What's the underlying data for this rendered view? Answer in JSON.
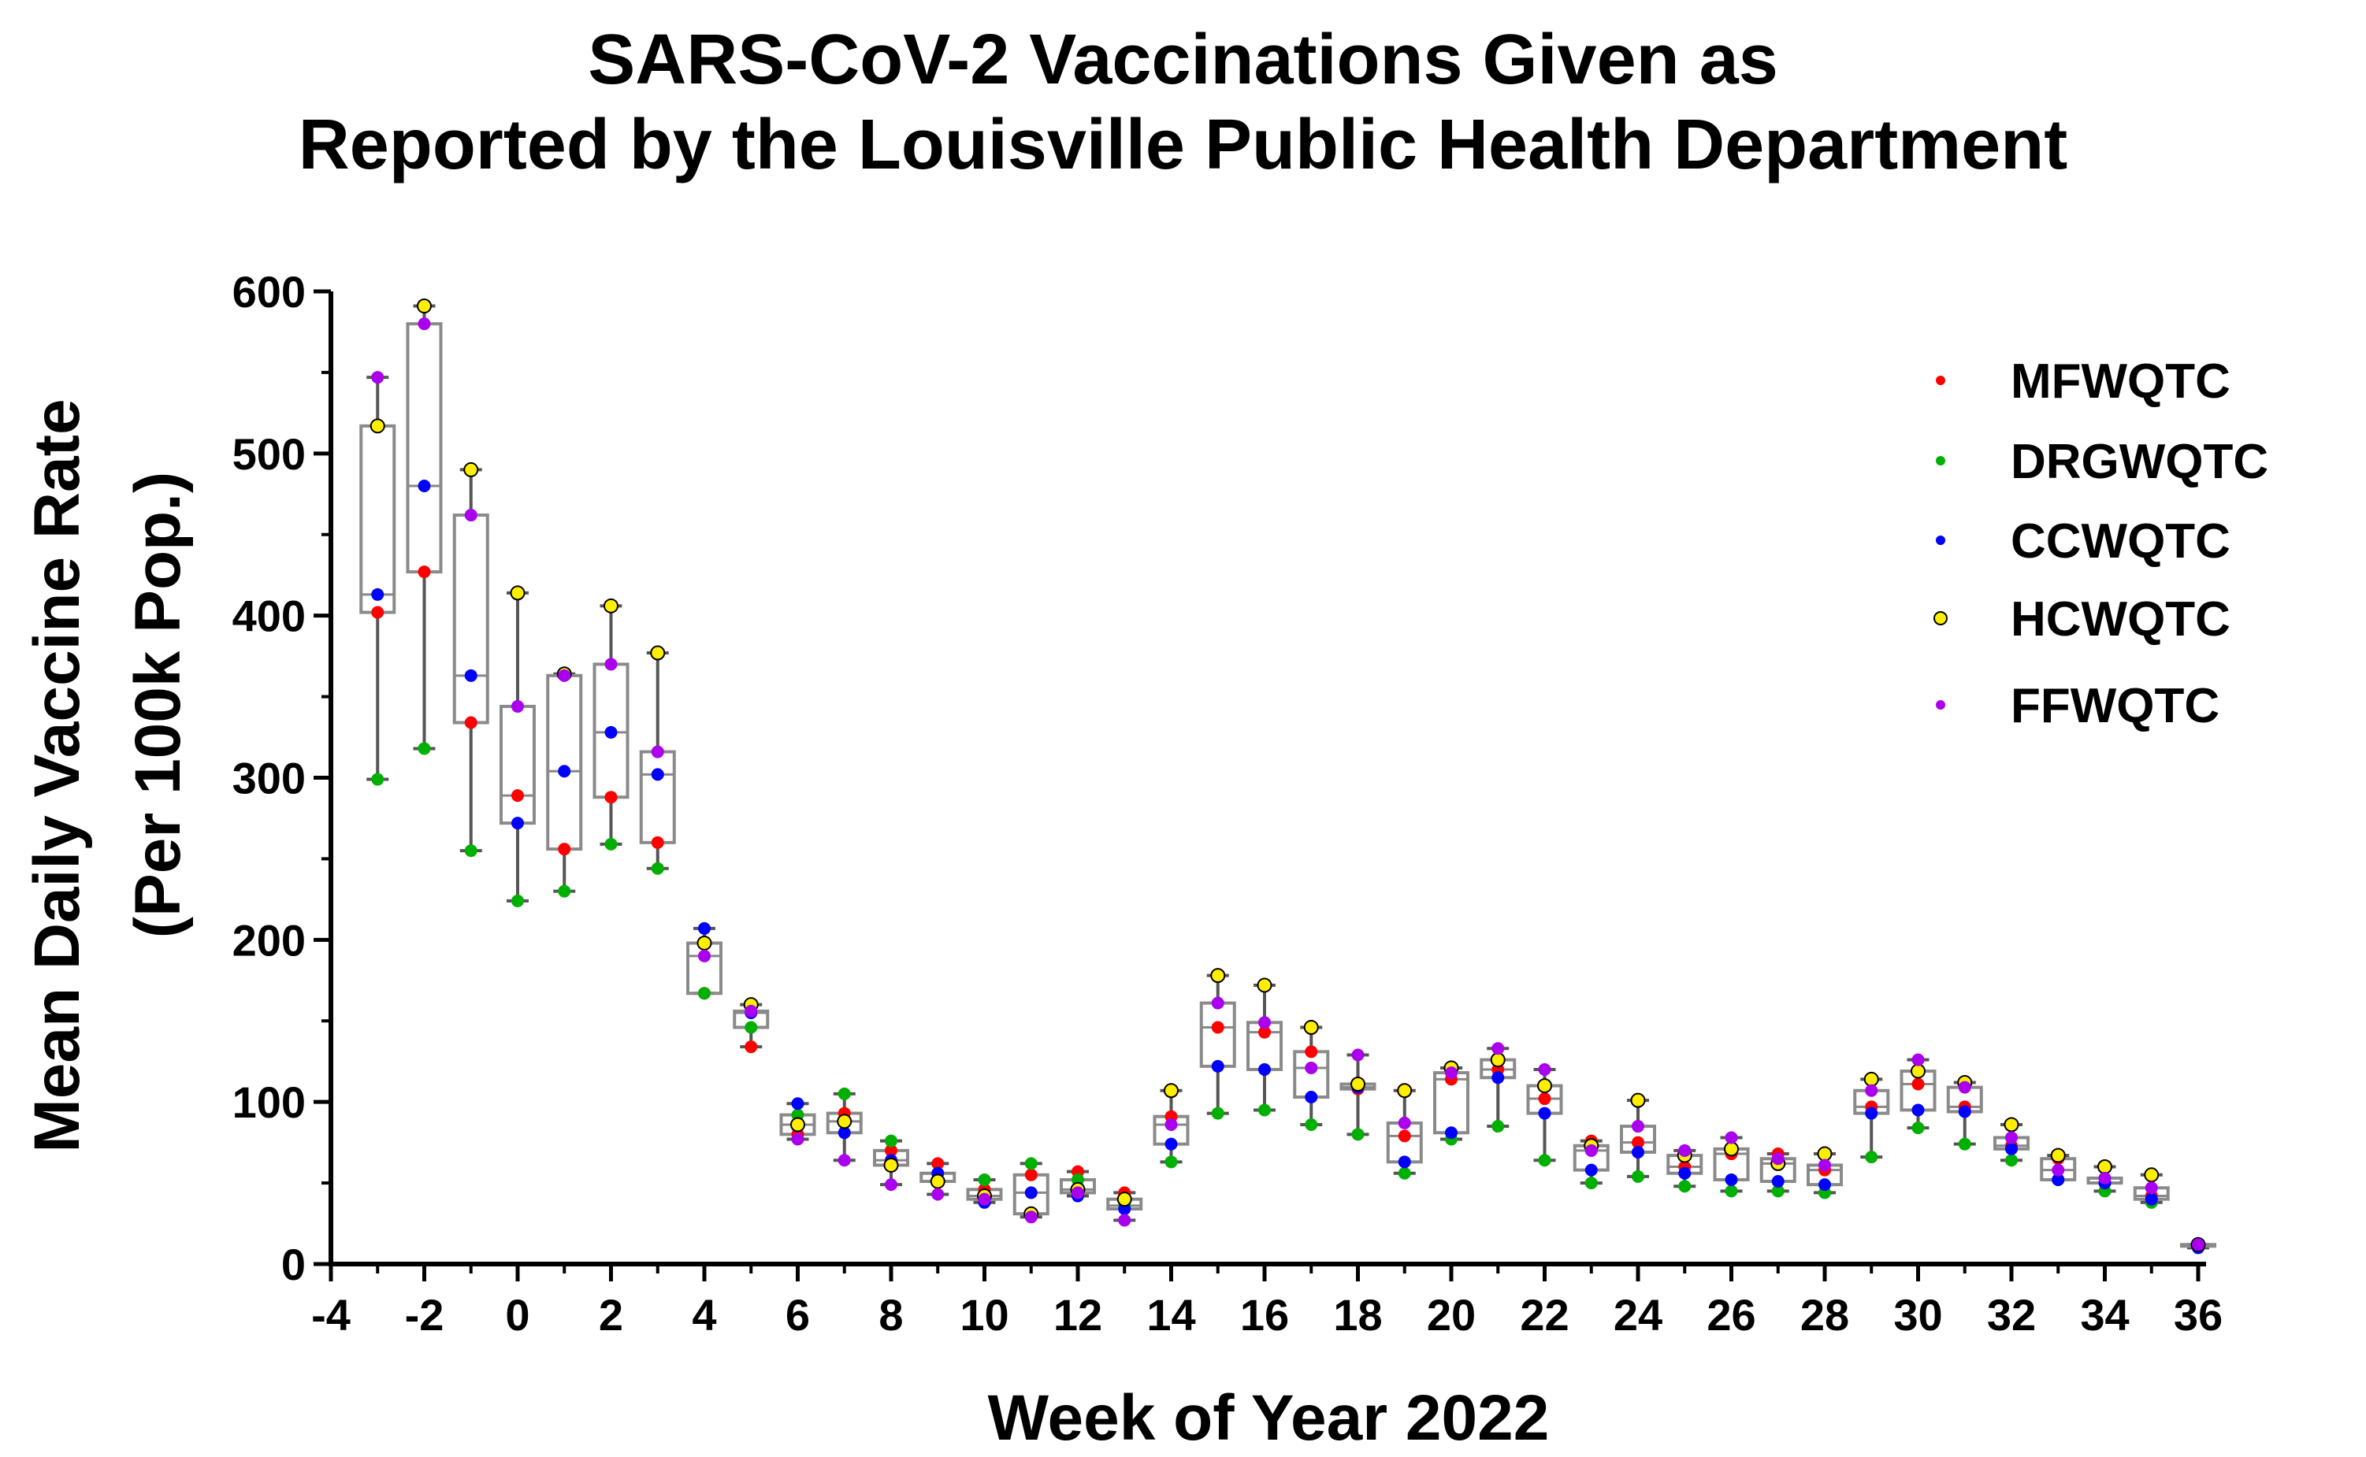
{
  "chart_data": {
    "type": "scatter",
    "title_lines": [
      "SARS-CoV-2 Vaccinations Given as",
      "Reported by the Louisville Public Health Department"
    ],
    "xlabel": "Week of Year 2022",
    "ylabel_lines": [
      "Mean Daily Vaccine Rate",
      "(Per 100k Pop.)"
    ],
    "xlim": [
      -4,
      36
    ],
    "ylim": [
      0,
      600
    ],
    "x_ticks": [
      -4,
      -2,
      0,
      2,
      4,
      6,
      8,
      10,
      12,
      14,
      16,
      18,
      20,
      22,
      24,
      26,
      28,
      30,
      32,
      34,
      36
    ],
    "y_ticks": [
      0,
      100,
      200,
      300,
      400,
      500,
      600
    ],
    "legend_position": "top-right",
    "weeks": [
      -3,
      -2,
      -1,
      0,
      1,
      2,
      3,
      4,
      5,
      6,
      7,
      8,
      9,
      10,
      11,
      12,
      13,
      14,
      15,
      16,
      17,
      18,
      19,
      20,
      21,
      22,
      23,
      24,
      25,
      26,
      27,
      28,
      29,
      30,
      31,
      32,
      33,
      34,
      35,
      36
    ],
    "series": [
      {
        "name": "MFWQTC",
        "color": "#ff0000",
        "marker": "circle",
        "values": [
          402,
          427,
          334,
          289,
          256,
          288,
          260,
          167,
          134,
          80,
          93,
          70,
          62,
          46,
          55,
          57,
          44,
          91,
          146,
          143,
          131,
          108,
          79,
          114,
          120,
          102,
          76,
          75,
          60,
          68,
          68,
          58,
          97,
          111,
          97,
          73,
          65,
          50,
          42,
          12
        ]
      },
      {
        "name": "DRGWQTC",
        "color": "#00b000",
        "marker": "circle",
        "values": [
          299,
          318,
          255,
          224,
          230,
          259,
          244,
          167,
          146,
          92,
          105,
          76,
          56,
          52,
          62,
          52,
          36,
          63,
          93,
          95,
          86,
          80,
          56,
          77,
          85,
          64,
          50,
          54,
          48,
          45,
          45,
          44,
          66,
          84,
          74,
          64,
          52,
          45,
          38,
          12
        ]
      },
      {
        "name": "CCWQTC",
        "color": "#0000ff",
        "marker": "circle",
        "values": [
          413,
          480,
          363,
          272,
          304,
          328,
          302,
          207,
          155,
          99,
          81,
          64,
          56,
          38,
          44,
          42,
          34,
          74,
          122,
          120,
          103,
          109,
          63,
          81,
          115,
          93,
          58,
          69,
          56,
          52,
          51,
          49,
          93,
          95,
          94,
          71,
          52,
          50,
          40,
          10
        ]
      },
      {
        "name": "HCWQTC",
        "color": "#ffee00",
        "marker": "circle-outline",
        "values": [
          517,
          591,
          490,
          414,
          364,
          406,
          377,
          198,
          160,
          86,
          88,
          61,
          51,
          42,
          31,
          46,
          40,
          107,
          178,
          172,
          146,
          111,
          107,
          121,
          126,
          110,
          73,
          101,
          67,
          71,
          62,
          68,
          114,
          119,
          112,
          86,
          67,
          60,
          55,
          12
        ]
      },
      {
        "name": "FFWQTC",
        "color": "#aa00ee",
        "marker": "circle",
        "values": [
          547,
          580,
          462,
          344,
          363,
          370,
          316,
          190,
          156,
          77,
          64,
          49,
          43,
          40,
          29,
          44,
          27,
          86,
          161,
          149,
          121,
          129,
          87,
          118,
          133,
          120,
          70,
          85,
          70,
          78,
          65,
          61,
          107,
          126,
          109,
          78,
          58,
          53,
          47,
          12
        ]
      }
    ]
  }
}
